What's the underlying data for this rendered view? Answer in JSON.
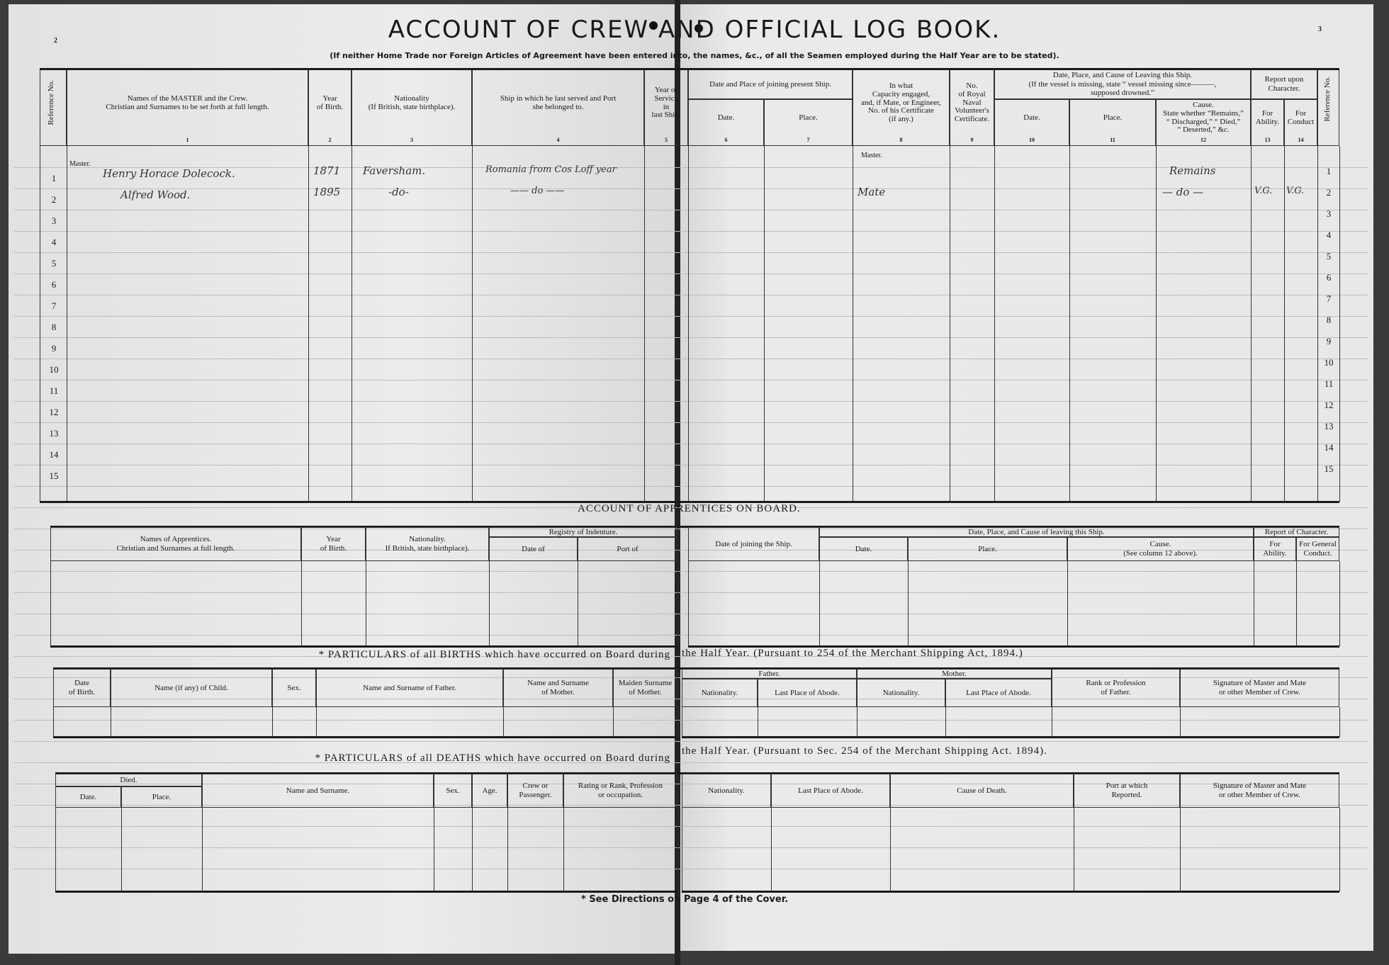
{
  "title": "ACCOUNT OF CREW AND OFFICIAL LOG BOOK.",
  "subtitle": "(If neither Home Trade nor Foreign Articles of Agreement have been entered into, the names, &c., of all the Seamen employed during the Half Year are to be stated).",
  "page_numbers": {
    "left": "2",
    "right": "3"
  },
  "crew_table": {
    "ref_label": "Reference No.",
    "headers": {
      "names": "Names of the MASTER and the Crew.\nChristian and Surnames to be set forth at full length.",
      "year_birth": "Year\nof Birth.",
      "nationality": "Nationality\n(If British, state birthplace).",
      "ship_last": "Ship in which he last served and Port\nshe belonged to.",
      "year_service": "Year of Service\nin\nlast Ship.",
      "joining_group": "Date and Place of joining present Ship.",
      "join_date": "Date.",
      "join_place": "Place.",
      "capacity": "In what\nCapacity engaged,\nand, if Mate, or Engineer,\nNo. of his Certificate\n(if any.)",
      "rnv": "No.\nof Royal\nNaval\nVolunteer's\nCertificate.",
      "leaving_group": "Date, Place, and Cause of Leaving this Ship.\n(If the vessel is missing, state “ vessel missing since———,\nsupposed drowned.”",
      "leave_date": "Date.",
      "leave_place": "Place.",
      "leave_cause": "Cause.\nState whether “Remains,”\n“ Discharged,” “ Died,”\n“ Deserted,” &c.",
      "report_group": "Report upon\nCharacter.",
      "ability": "For\nAbility.",
      "conduct": "For\nConduct"
    },
    "column_numbers": [
      "1",
      "2",
      "3",
      "4",
      "5",
      "6",
      "7",
      "8",
      "9",
      "10",
      "11",
      "12",
      "13",
      "14"
    ],
    "row_numbers": [
      "1",
      "2",
      "3",
      "4",
      "5",
      "6",
      "7",
      "8",
      "9",
      "10",
      "11",
      "12",
      "13",
      "14",
      "15"
    ],
    "master_label": "Master.",
    "capacity_master_label": "Master.",
    "rows": [
      {
        "name": "Henry Horace Dolecock.",
        "year": "1871",
        "nationality": "Faversham.",
        "ship": "Romania from Cos Loff year",
        "capacity": "",
        "cause": "Remains",
        "ability": "",
        "conduct": ""
      },
      {
        "name": "Alfred Wood.",
        "year": "1895",
        "nationality": "-do-",
        "ship": "——  do  ——",
        "capacity": "Mate",
        "cause": "— do —",
        "ability": "V.G.",
        "conduct": "V.G."
      }
    ]
  },
  "apprentices": {
    "heading": "ACCOUNT OF APPRENTICES ON BOARD.",
    "headers": {
      "names": "Names of Apprentices.\nChristian and Surnames at full length.",
      "year": "Year\nof Birth.",
      "nationality": "Nationality.\nIf British, state birthplace).",
      "registry_group": "Registry of Indenture.",
      "date_of": "Date of",
      "port_of": "Port of",
      "joining": "Date of joining the Ship.",
      "leaving_group": "Date, Place, and Cause of leaving this Ship.",
      "date": "Date.",
      "place": "Place.",
      "cause": "Cause.\n(See column 12 above).",
      "report_group": "Report of Character.",
      "ability": "For\nAbility.",
      "conduct": "For General\nConduct."
    }
  },
  "births": {
    "heading_left": "* PARTICULARS of all BIRTHS which have occurred on Board during",
    "heading_right": "the Half Year.     (Pursuant to 254 of the Merchant Shipping Act, 1894.)",
    "headers": {
      "date": "Date\nof Birth.",
      "child": "Name (if any) of Child.",
      "sex": "Sex.",
      "father_name": "Name and Surname of Father.",
      "mother_name": "Name and Surname\nof Mother.",
      "maiden": "Maiden Surname\nof Mother.",
      "father_group": "Father.",
      "father_nat": "Nationality.",
      "father_abode": "Last Place of Abode.",
      "mother_group": "Mother.",
      "mother_nat": "Nationality.",
      "mother_abode": "Last Place of Abode.",
      "rank": "Rank or Profession\nof Father.",
      "signature": "Signature of Master and Mate\nor other Member of Crew."
    }
  },
  "deaths": {
    "heading_left": "* PARTICULARS of all DEATHS which have occurred on Board during",
    "heading_right": "the Half Year.   (Pursuant to Sec. 254 of the Merchant Shipping Act. 1894).",
    "headers": {
      "died_group": "Died.",
      "date": "Date.",
      "place": "Place.",
      "name": "Name and Surname.",
      "sex": "Sex.",
      "age": "Age.",
      "crew": "Crew or\nPassenger.",
      "rating": "Rating or Rank, Profession\nor occupation.",
      "nationality": "Nationality.",
      "abode": "Last Place of Abode.",
      "cause": "Cause of Death.",
      "port": "Port at which\nReported.",
      "signature": "Signature of Master and Mate\nor other Member of Crew."
    }
  },
  "footer_note": "* See Directions on Page 4 of the Cover."
}
